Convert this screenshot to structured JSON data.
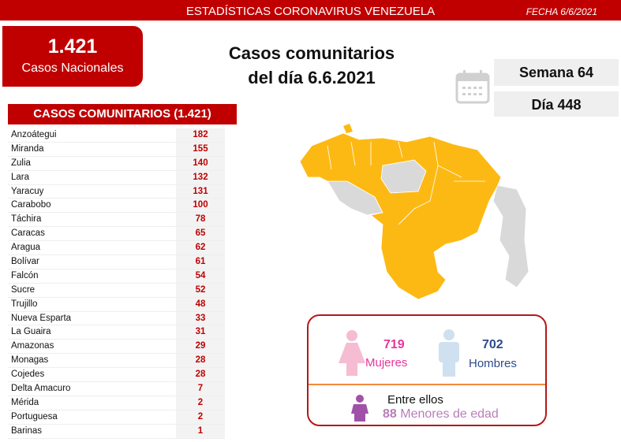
{
  "header": {
    "title": "ESTADÍSTICAS CORONAVIRUS VENEZUELA",
    "date": "FECHA 6/6/2021"
  },
  "national": {
    "value": "1.421",
    "label": "Casos Nacionales"
  },
  "headline": {
    "line1": "Casos comunitarios",
    "line2": "del día 6.6.2021"
  },
  "week": "Semana 64",
  "day": "Día 448",
  "table": {
    "title": "CASOS COMUNITARIOS (1.421)",
    "rows": [
      {
        "state": "Anzoátegui",
        "cases": "182"
      },
      {
        "state": "Miranda",
        "cases": "155"
      },
      {
        "state": "Zulia",
        "cases": "140"
      },
      {
        "state": "Lara",
        "cases": "132"
      },
      {
        "state": "Yaracuy",
        "cases": "131"
      },
      {
        "state": "Carabobo",
        "cases": "100"
      },
      {
        "state": "Táchira",
        "cases": "78"
      },
      {
        "state": "Caracas",
        "cases": "65"
      },
      {
        "state": "Aragua",
        "cases": "62"
      },
      {
        "state": "Bolívar",
        "cases": "61"
      },
      {
        "state": "Falcón",
        "cases": "54"
      },
      {
        "state": "Sucre",
        "cases": "52"
      },
      {
        "state": "Trujillo",
        "cases": "48"
      },
      {
        "state": "Nueva Esparta",
        "cases": "33"
      },
      {
        "state": "La Guaira",
        "cases": "31"
      },
      {
        "state": "Amazonas",
        "cases": "29"
      },
      {
        "state": "Monagas",
        "cases": "28"
      },
      {
        "state": "Cojedes",
        "cases": "28"
      },
      {
        "state": "Delta Amacuro",
        "cases": "7"
      },
      {
        "state": "Mérida",
        "cases": "2"
      },
      {
        "state": "Portuguesa",
        "cases": "2"
      },
      {
        "state": "Barinas",
        "cases": "1"
      }
    ]
  },
  "demographics": {
    "women": "719",
    "women_label": "Mujeres",
    "men": "702",
    "men_label": "Hombres",
    "among": "Entre ellos",
    "minors": "88",
    "minors_label": "Menores de edad"
  },
  "colors": {
    "brand": "#c00000",
    "map_cases": "#fdb913",
    "map_none": "#d9d9d9",
    "women": "#e8359a",
    "men": "#2e4a8b",
    "minors": "#a052a8"
  }
}
